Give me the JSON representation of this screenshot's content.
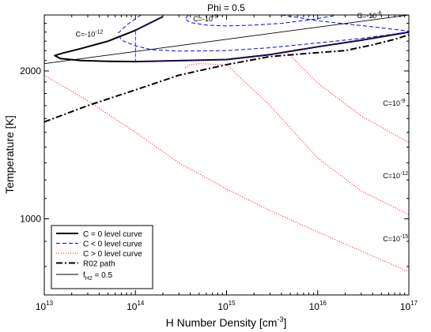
{
  "chart_data": {
    "type": "line",
    "title": "Phi = 0.5",
    "xlabel": "H Number Density [cm",
    "xlabel_sup": "-3",
    "xlabel_end": "]",
    "ylabel": "Temperature [K]",
    "x_scale": "log",
    "y_scale": "log",
    "xlim": [
      10000000000000.0,
      1e+17
    ],
    "ylim": [
      700,
      2600
    ],
    "grid": false,
    "legend_position": "bottom-left",
    "x_ticks": [
      {
        "value": 10000000000000.0,
        "base": "10",
        "exp": "13"
      },
      {
        "value": 100000000000000.0,
        "base": "10",
        "exp": "14"
      },
      {
        "value": 1000000000000000.0,
        "base": "10",
        "exp": "15"
      },
      {
        "value": 1e+16,
        "base": "10",
        "exp": "16"
      },
      {
        "value": 1e+17,
        "base": "10",
        "exp": "17"
      }
    ],
    "y_ticks": [
      {
        "value": 1000,
        "label": "1000"
      },
      {
        "value": 2000,
        "label": "2000"
      }
    ],
    "series": [
      {
        "name": "C = 0 level curve",
        "style": "solid-thick",
        "color": "#000000",
        "overlay_colors": [
          "#ff0000",
          "#0000ff"
        ],
        "points": [
          [
            200000000000000.0,
            2580
          ],
          [
            100000000000000.0,
            2420
          ],
          [
            50000000000000.0,
            2300
          ],
          [
            25000000000000.0,
            2220
          ],
          [
            16000000000000.0,
            2175
          ],
          [
            13000000000000.0,
            2150
          ],
          [
            15000000000000.0,
            2120
          ],
          [
            25000000000000.0,
            2100
          ],
          [
            50000000000000.0,
            2092
          ],
          [
            100000000000000.0,
            2090
          ],
          [
            1000000000000000.0,
            2110
          ],
          [
            3000000000000000.0,
            2160
          ],
          [
            1e+16,
            2240
          ],
          [
            3e+16,
            2310
          ],
          [
            1e+17,
            2400
          ]
        ]
      },
      {
        "name": "C < 0 level curve",
        "style": "dashed",
        "color": "#0000ff",
        "points": [],
        "segments": [
          [
            [
              115000000000000.0,
              2600
            ],
            [
              80000000000000.0,
              2480
            ],
            [
              65000000000000.0,
              2390
            ],
            [
              70000000000000.0,
              2310
            ],
            [
              100000000000000.0,
              2250
            ],
            [
              150000000000000.0,
              2210
            ],
            [
              300000000000000.0,
              2195
            ],
            [
              1000000000000000.0,
              2200
            ],
            [
              3000000000000000.0,
              2230
            ],
            [
              1e+16,
              2280
            ],
            [
              3e+16,
              2330
            ],
            [
              1e+17,
              2400
            ]
          ],
          [
            [
              380000000000000.0,
              2600
            ],
            [
              350000000000000.0,
              2550
            ],
            [
              400000000000000.0,
              2510
            ],
            [
              600000000000000.0,
              2480
            ],
            [
              1000000000000000.0,
              2470
            ],
            [
              2000000000000000.0,
              2480
            ],
            [
              4000000000000000.0,
              2500
            ],
            [
              8000000000000000.0,
              2540
            ],
            [
              1.5e+16,
              2590
            ]
          ],
          [
            [
              4000000000000000.0,
              2600
            ],
            [
              6000000000000000.0,
              2570
            ],
            [
              1e+16,
              2530
            ],
            [
              2e+16,
              2495
            ],
            [
              4e+16,
              2460
            ],
            [
              7e+16,
              2430
            ],
            [
              1e+17,
              2410
            ]
          ]
        ]
      },
      {
        "name": "C > 0 level curve",
        "style": "dotted",
        "color": "#ff0000",
        "points": [],
        "segments": [
          [
            [
              10000000000000.0,
              1960
            ],
            [
              30000000000000.0,
              1740
            ],
            [
              100000000000000.0,
              1500
            ],
            [
              300000000000000.0,
              1300
            ],
            [
              1000000000000000.0,
              1150
            ],
            [
              3000000000000000.0,
              1040
            ],
            [
              1e+16,
              940
            ],
            [
              3e+16,
              860
            ],
            [
              1e+17,
              780
            ]
          ],
          [
            [
              350000000000000.0,
              2030
            ],
            [
              400000000000000.0,
              2060
            ],
            [
              500000000000000.0,
              2070
            ],
            [
              1000000000000000.0,
              2060
            ],
            [
              3000000000000000.0,
              1700
            ],
            [
              1e+16,
              1330
            ],
            [
              3e+16,
              1140
            ],
            [
              1e+17,
              1020
            ]
          ],
          [
            [
              4500000000000000.0,
              2180
            ],
            [
              5000000000000000.0,
              2150
            ],
            [
              1e+16,
              1890
            ],
            [
              3e+16,
              1620
            ],
            [
              1e+17,
              1430
            ]
          ]
        ]
      },
      {
        "name": "R02 path",
        "style": "dashdot",
        "color": "#000000",
        "points": [
          [
            10000000000000.0,
            1575
          ],
          [
            30000000000000.0,
            1700
          ],
          [
            100000000000000.0,
            1830
          ],
          [
            300000000000000.0,
            1960
          ],
          [
            1000000000000000.0,
            2060
          ],
          [
            3000000000000000.0,
            2140
          ],
          [
            1e+16,
            2180
          ],
          [
            2e+16,
            2200
          ],
          [
            4e+16,
            2260
          ],
          [
            7e+16,
            2320
          ],
          [
            1e+17,
            2370
          ]
        ]
      },
      {
        "name": "f",
        "name_sub": "H2",
        "name_end": " = 0.5",
        "style": "solid-thin",
        "color": "#000000",
        "points": [
          [
            10000000000000.0,
            2070
          ],
          [
            1e+17,
            2600
          ]
        ]
      }
    ],
    "annotations": [
      {
        "text": "C=-10",
        "exp": "-12",
        "x": 22000000000000.0,
        "y": 2350
      },
      {
        "text": "C=-10",
        "exp": "-9",
        "x": 430000000000000.0,
        "y": 2525
      },
      {
        "text": "C=-10",
        "exp": "-6",
        "x": 2.7e+16,
        "y": 2560
      },
      {
        "text": "C=10",
        "exp": "-9",
        "x": 5.2e+16,
        "y": 1700
      },
      {
        "text": "C=10",
        "exp": "-12",
        "x": 5.2e+16,
        "y": 1210
      },
      {
        "text": "C=10",
        "exp": "-15",
        "x": 5.2e+16,
        "y": 900
      }
    ]
  }
}
